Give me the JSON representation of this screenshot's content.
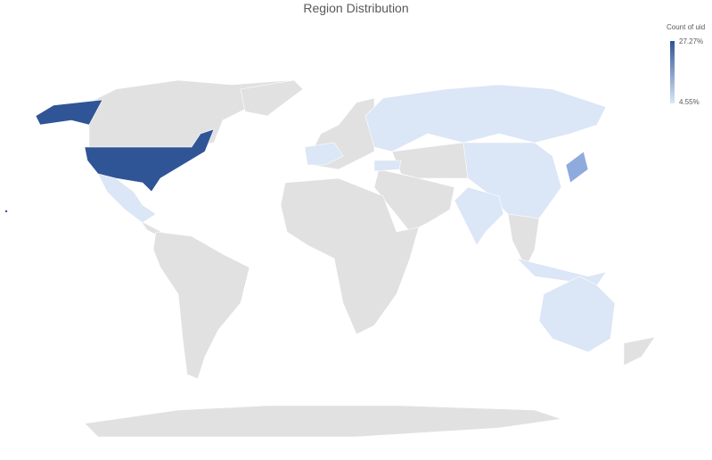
{
  "chart_data": {
    "type": "choropleth",
    "title": "Region Distribution",
    "legend": {
      "title": "Count of uid",
      "max_label": "27.27%",
      "min_label": "4.55%",
      "max_color": "#2f5597",
      "min_color": "#dbe6f6",
      "placement": "top-right"
    },
    "no_data_color": "#e1e1e1",
    "regions": [
      {
        "name": "United States",
        "value": 27.27,
        "color": "#2f5597"
      },
      {
        "name": "Japan",
        "color": "#8faadc"
      },
      {
        "name": "Russia",
        "color": "#dbe6f6"
      },
      {
        "name": "China",
        "color": "#dbe6f6"
      },
      {
        "name": "India",
        "color": "#dbe6f6"
      },
      {
        "name": "Mexico",
        "color": "#dbe6f6"
      },
      {
        "name": "France",
        "color": "#dbe6f6"
      },
      {
        "name": "Turkey",
        "color": "#dbe6f6"
      },
      {
        "name": "Indonesia",
        "color": "#dbe6f6"
      },
      {
        "name": "Australia",
        "color": "#dbe6f6"
      }
    ]
  }
}
